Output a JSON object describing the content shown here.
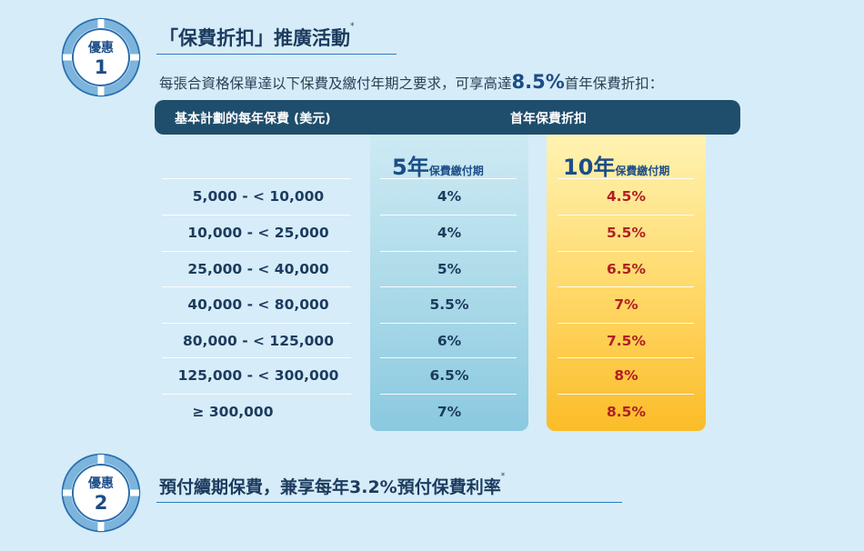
{
  "offer1": {
    "badge_label": "優惠",
    "badge_number": "1",
    "title": "「保費折扣」推廣活動",
    "title_mark": "*",
    "description_prefix": "每張合資格保單達以下保費及繳付年期之要求，可享高達",
    "description_highlight": "8.5%",
    "description_suffix": "首年保費折扣："
  },
  "table": {
    "header_left": "基本計劃的每年保費 (美元)",
    "header_right": "首年保費折扣",
    "col5_big": "5年",
    "col5_small": "保費繳付期",
    "col10_big": "10年",
    "col10_small": "保費繳付期",
    "rows": [
      {
        "amount": "5,000 - < 10,000",
        "p5": "4%",
        "p10": "4.5%"
      },
      {
        "amount": "10,000 - < 25,000",
        "p5": "4%",
        "p10": "5.5%"
      },
      {
        "amount": "25,000 - < 40,000",
        "p5": "5%",
        "p10": "6.5%"
      },
      {
        "amount": "40,000 - < 80,000",
        "p5": "5.5%",
        "p10": "7%"
      },
      {
        "amount": "80,000 - < 125,000",
        "p5": "6%",
        "p10": "7.5%"
      },
      {
        "amount": "125,000 - <  300,000",
        "p5": "6.5%",
        "p10": "8%"
      },
      {
        "amount": "≥ 300,000",
        "p5": "7%",
        "p10": "8.5%"
      }
    ]
  },
  "offer2": {
    "badge_label": "優惠",
    "badge_number": "2",
    "title": "預付續期保費，兼享每年3.2%預付保費利率",
    "title_mark": "*"
  }
}
